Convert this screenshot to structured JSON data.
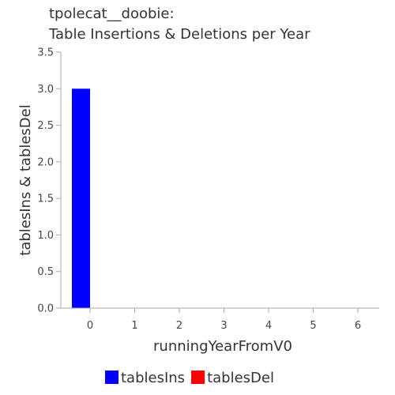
{
  "chart_data": {
    "type": "bar",
    "title_lines": [
      "tpolecat__doobie:",
      "Table Insertions & Deletions per Year"
    ],
    "xlabel": "runningYearFromV0",
    "ylabel": "tablesIns & tablesDel",
    "categories": [
      "0",
      "1",
      "2",
      "3",
      "4",
      "5",
      "6"
    ],
    "x": [
      0,
      1,
      2,
      3,
      4,
      5,
      6
    ],
    "ylim": [
      0,
      3.5
    ],
    "yticks": [
      "0.0",
      "0.5",
      "1.0",
      "1.5",
      "2.0",
      "2.5",
      "3.0",
      "3.5"
    ],
    "grid": false,
    "legend_position": "bottom",
    "series": [
      {
        "name": "tablesIns",
        "color": "#0000ff",
        "values": [
          3,
          0,
          0,
          0,
          0,
          0,
          0
        ]
      },
      {
        "name": "tablesDel",
        "color": "#ff0000",
        "values": [
          0,
          0,
          0,
          0,
          0,
          0,
          0
        ]
      }
    ]
  }
}
